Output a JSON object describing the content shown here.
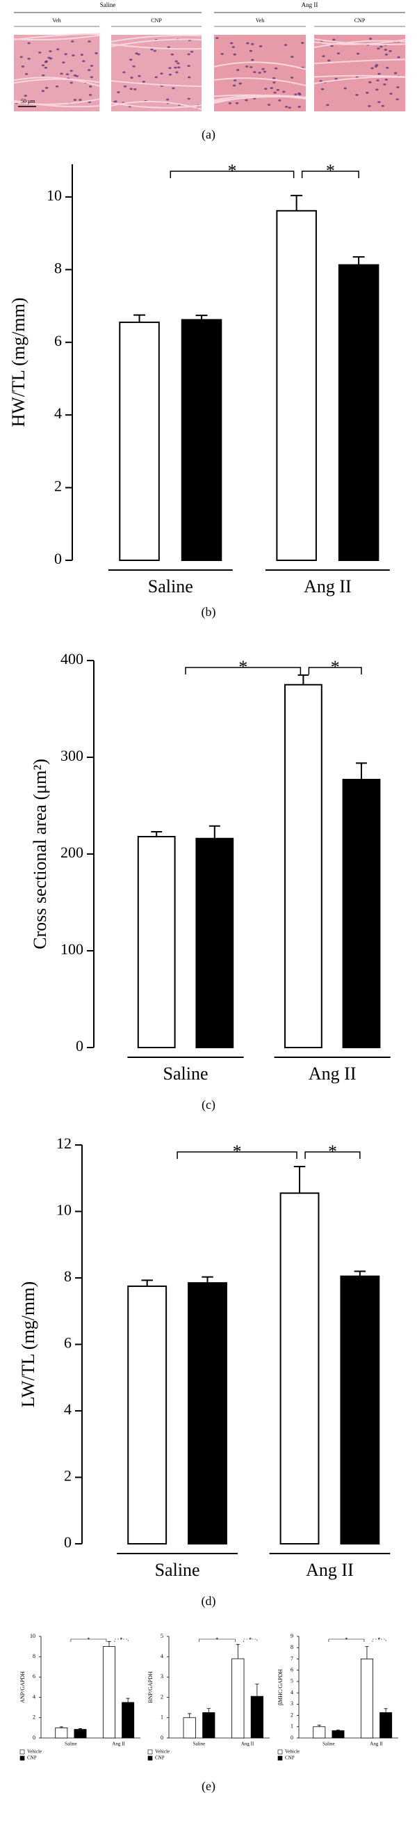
{
  "panel_a": {
    "groups": [
      {
        "label": "Saline",
        "images": [
          "Veh",
          "CNP"
        ]
      },
      {
        "label": "Ang II",
        "images": [
          "Veh",
          "CNP"
        ]
      }
    ],
    "scale_bar": "50 μm",
    "caption": "(a)"
  },
  "chart_data": [
    {
      "type": "bar",
      "ylabel": "HW/TL (mg/mm)",
      "categories": [
        "Saline",
        "Ang II"
      ],
      "series": [
        {
          "color": "#ffffff",
          "values": [
            6.55,
            9.62
          ],
          "errors": [
            0.2,
            0.42
          ]
        },
        {
          "color": "#000000",
          "values": [
            6.62,
            8.13
          ],
          "errors": [
            0.12,
            0.22
          ]
        }
      ],
      "ylim": [
        0,
        10.9
      ],
      "yticks": [
        0,
        2,
        4,
        6,
        8,
        10
      ],
      "annotations": [
        "*",
        "*"
      ],
      "caption": "(b)"
    },
    {
      "type": "bar",
      "ylabel": "Cross sectional area (μm²)",
      "categories": [
        "Saline",
        "Ang II"
      ],
      "series": [
        {
          "color": "#ffffff",
          "values": [
            218,
            375
          ],
          "errors": [
            5,
            10
          ]
        },
        {
          "color": "#000000",
          "values": [
            216,
            277
          ],
          "errors": [
            13,
            17
          ]
        }
      ],
      "ylim": [
        0,
        400
      ],
      "yticks": [
        0,
        100,
        200,
        300,
        400
      ],
      "annotations": [
        "*",
        "*"
      ],
      "caption": "(c)"
    },
    {
      "type": "bar",
      "ylabel": "LW/TL (mg/mm)",
      "categories": [
        "Saline",
        "Ang II"
      ],
      "series": [
        {
          "color": "#ffffff",
          "values": [
            7.75,
            10.55
          ],
          "errors": [
            0.18,
            0.8
          ]
        },
        {
          "color": "#000000",
          "values": [
            7.85,
            8.05
          ],
          "errors": [
            0.18,
            0.15
          ]
        }
      ],
      "ylim": [
        0,
        12
      ],
      "yticks": [
        0,
        2,
        4,
        6,
        8,
        10,
        12
      ],
      "annotations": [
        "*",
        "*"
      ],
      "caption": "(d)"
    },
    {
      "type": "bar",
      "ylabel": "ANP/GAPDH",
      "categories": [
        "Saline",
        "Ang II"
      ],
      "series": [
        {
          "name": "Vehicle",
          "color": "#ffffff",
          "values": [
            1.0,
            9.0
          ],
          "errors": [
            0.1,
            0.5
          ]
        },
        {
          "name": "CNP",
          "color": "#000000",
          "values": [
            0.85,
            3.5
          ],
          "errors": [
            0.08,
            0.4
          ]
        }
      ],
      "ylim": [
        0,
        10
      ],
      "yticks": [
        0,
        2,
        4,
        6,
        8,
        10
      ],
      "annotations": [
        "*",
        "*"
      ]
    },
    {
      "type": "bar",
      "ylabel": "BNP/GAPDH",
      "categories": [
        "Saline",
        "Ang II"
      ],
      "series": [
        {
          "name": "Vehicle",
          "color": "#ffffff",
          "values": [
            1.0,
            3.9
          ],
          "errors": [
            0.2,
            0.7
          ]
        },
        {
          "name": "CNP",
          "color": "#000000",
          "values": [
            1.25,
            2.05
          ],
          "errors": [
            0.2,
            0.6
          ]
        }
      ],
      "ylim": [
        0,
        5
      ],
      "yticks": [
        0,
        1,
        2,
        3,
        4,
        5
      ],
      "annotations": [
        "*",
        "*"
      ]
    },
    {
      "type": "bar",
      "ylabel": "βMHC/GAPDH",
      "categories": [
        "Saline",
        "Ang II"
      ],
      "series": [
        {
          "name": "Vehicle",
          "color": "#ffffff",
          "values": [
            1.0,
            7.0
          ],
          "errors": [
            0.15,
            1.1
          ]
        },
        {
          "name": "CNP",
          "color": "#000000",
          "values": [
            0.65,
            2.25
          ],
          "errors": [
            0.06,
            0.35
          ]
        }
      ],
      "ylim": [
        0,
        9
      ],
      "yticks": [
        0,
        1,
        2,
        3,
        4,
        5,
        6,
        7,
        8,
        9
      ],
      "annotations": [
        "*",
        "*"
      ]
    }
  ],
  "panel_e_caption": "(e)"
}
